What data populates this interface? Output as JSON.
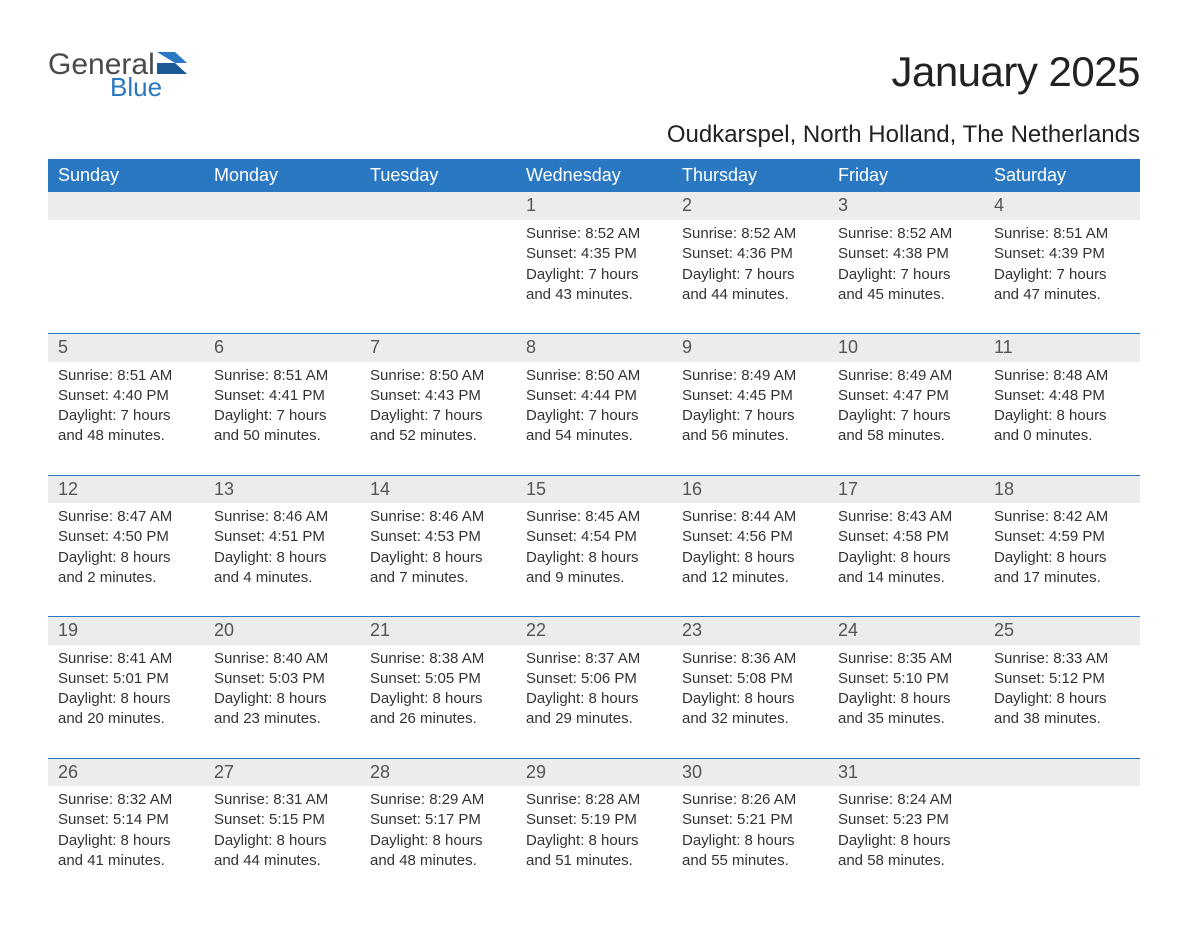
{
  "logo": {
    "general": "General",
    "blue": "Blue"
  },
  "title": "January 2025",
  "location": "Oudkarspel, North Holland, The Netherlands",
  "theme": {
    "header_bg": "#2b78c2",
    "header_fg": "#ffffff",
    "daynum_bg": "#ececec",
    "daynum_fg": "#555555",
    "text_color": "#333333",
    "rule_color": "#2b78c2",
    "page_bg": "#ffffff",
    "title_fontsize": 42,
    "location_fontsize": 24,
    "header_fontsize": 18,
    "daynum_fontsize": 18,
    "detail_fontsize": 15
  },
  "weekdays": [
    "Sunday",
    "Monday",
    "Tuesday",
    "Wednesday",
    "Thursday",
    "Friday",
    "Saturday"
  ],
  "weeks": [
    [
      null,
      null,
      null,
      {
        "n": "1",
        "sunrise": "8:52 AM",
        "sunset": "4:35 PM",
        "dl_h": "7",
        "dl_m": "43"
      },
      {
        "n": "2",
        "sunrise": "8:52 AM",
        "sunset": "4:36 PM",
        "dl_h": "7",
        "dl_m": "44"
      },
      {
        "n": "3",
        "sunrise": "8:52 AM",
        "sunset": "4:38 PM",
        "dl_h": "7",
        "dl_m": "45"
      },
      {
        "n": "4",
        "sunrise": "8:51 AM",
        "sunset": "4:39 PM",
        "dl_h": "7",
        "dl_m": "47"
      }
    ],
    [
      {
        "n": "5",
        "sunrise": "8:51 AM",
        "sunset": "4:40 PM",
        "dl_h": "7",
        "dl_m": "48"
      },
      {
        "n": "6",
        "sunrise": "8:51 AM",
        "sunset": "4:41 PM",
        "dl_h": "7",
        "dl_m": "50"
      },
      {
        "n": "7",
        "sunrise": "8:50 AM",
        "sunset": "4:43 PM",
        "dl_h": "7",
        "dl_m": "52"
      },
      {
        "n": "8",
        "sunrise": "8:50 AM",
        "sunset": "4:44 PM",
        "dl_h": "7",
        "dl_m": "54"
      },
      {
        "n": "9",
        "sunrise": "8:49 AM",
        "sunset": "4:45 PM",
        "dl_h": "7",
        "dl_m": "56"
      },
      {
        "n": "10",
        "sunrise": "8:49 AM",
        "sunset": "4:47 PM",
        "dl_h": "7",
        "dl_m": "58"
      },
      {
        "n": "11",
        "sunrise": "8:48 AM",
        "sunset": "4:48 PM",
        "dl_h": "8",
        "dl_m": "0"
      }
    ],
    [
      {
        "n": "12",
        "sunrise": "8:47 AM",
        "sunset": "4:50 PM",
        "dl_h": "8",
        "dl_m": "2"
      },
      {
        "n": "13",
        "sunrise": "8:46 AM",
        "sunset": "4:51 PM",
        "dl_h": "8",
        "dl_m": "4"
      },
      {
        "n": "14",
        "sunrise": "8:46 AM",
        "sunset": "4:53 PM",
        "dl_h": "8",
        "dl_m": "7"
      },
      {
        "n": "15",
        "sunrise": "8:45 AM",
        "sunset": "4:54 PM",
        "dl_h": "8",
        "dl_m": "9"
      },
      {
        "n": "16",
        "sunrise": "8:44 AM",
        "sunset": "4:56 PM",
        "dl_h": "8",
        "dl_m": "12"
      },
      {
        "n": "17",
        "sunrise": "8:43 AM",
        "sunset": "4:58 PM",
        "dl_h": "8",
        "dl_m": "14"
      },
      {
        "n": "18",
        "sunrise": "8:42 AM",
        "sunset": "4:59 PM",
        "dl_h": "8",
        "dl_m": "17"
      }
    ],
    [
      {
        "n": "19",
        "sunrise": "8:41 AM",
        "sunset": "5:01 PM",
        "dl_h": "8",
        "dl_m": "20"
      },
      {
        "n": "20",
        "sunrise": "8:40 AM",
        "sunset": "5:03 PM",
        "dl_h": "8",
        "dl_m": "23"
      },
      {
        "n": "21",
        "sunrise": "8:38 AM",
        "sunset": "5:05 PM",
        "dl_h": "8",
        "dl_m": "26"
      },
      {
        "n": "22",
        "sunrise": "8:37 AM",
        "sunset": "5:06 PM",
        "dl_h": "8",
        "dl_m": "29"
      },
      {
        "n": "23",
        "sunrise": "8:36 AM",
        "sunset": "5:08 PM",
        "dl_h": "8",
        "dl_m": "32"
      },
      {
        "n": "24",
        "sunrise": "8:35 AM",
        "sunset": "5:10 PM",
        "dl_h": "8",
        "dl_m": "35"
      },
      {
        "n": "25",
        "sunrise": "8:33 AM",
        "sunset": "5:12 PM",
        "dl_h": "8",
        "dl_m": "38"
      }
    ],
    [
      {
        "n": "26",
        "sunrise": "8:32 AM",
        "sunset": "5:14 PM",
        "dl_h": "8",
        "dl_m": "41"
      },
      {
        "n": "27",
        "sunrise": "8:31 AM",
        "sunset": "5:15 PM",
        "dl_h": "8",
        "dl_m": "44"
      },
      {
        "n": "28",
        "sunrise": "8:29 AM",
        "sunset": "5:17 PM",
        "dl_h": "8",
        "dl_m": "48"
      },
      {
        "n": "29",
        "sunrise": "8:28 AM",
        "sunset": "5:19 PM",
        "dl_h": "8",
        "dl_m": "51"
      },
      {
        "n": "30",
        "sunrise": "8:26 AM",
        "sunset": "5:21 PM",
        "dl_h": "8",
        "dl_m": "55"
      },
      {
        "n": "31",
        "sunrise": "8:24 AM",
        "sunset": "5:23 PM",
        "dl_h": "8",
        "dl_m": "58"
      },
      null
    ]
  ],
  "labels": {
    "sunrise": "Sunrise: ",
    "sunset": "Sunset: ",
    "daylight_pre": "Daylight: ",
    "hours": " hours",
    "and": "and ",
    "minutes": " minutes."
  }
}
